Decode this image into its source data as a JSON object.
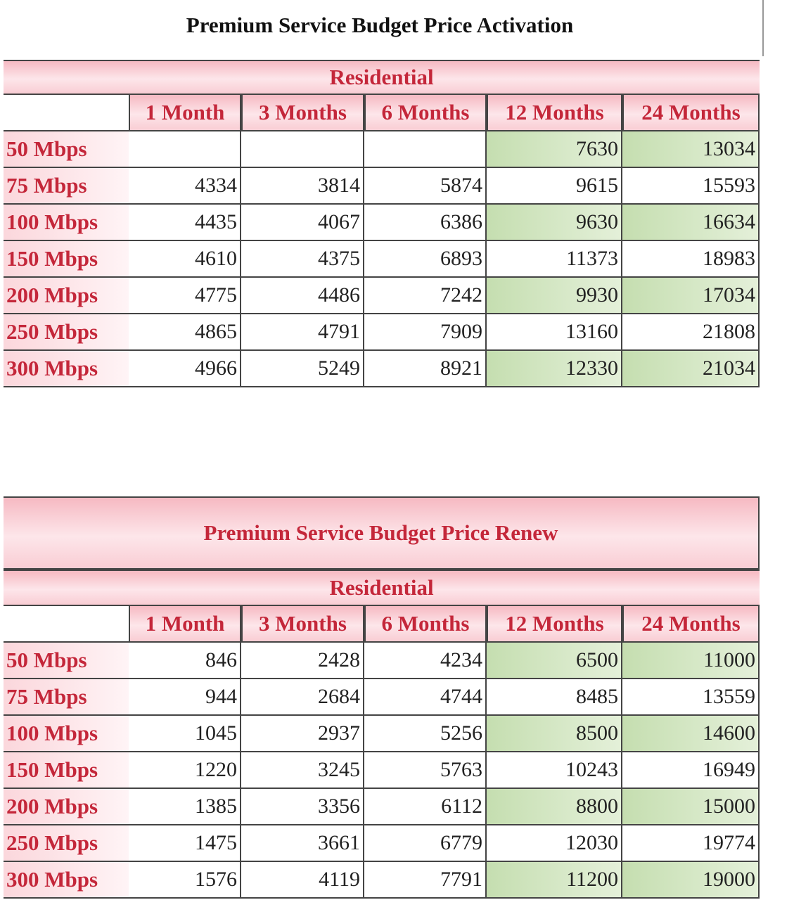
{
  "tables": [
    {
      "title": "Premium Service Budget Price Activation",
      "group": "Residential",
      "columns": [
        "1 Month",
        "3 Months",
        "6 Months",
        "12 Months",
        "24 Months"
      ],
      "rows": [
        {
          "label": "50 Mbps",
          "values": [
            null,
            null,
            null,
            7630,
            13034
          ]
        },
        {
          "label": "75 Mbps",
          "values": [
            4334,
            3814,
            5874,
            9615,
            15593
          ]
        },
        {
          "label": "100 Mbps",
          "values": [
            4435,
            4067,
            6386,
            9630,
            16634
          ]
        },
        {
          "label": "150 Mbps",
          "values": [
            4610,
            4375,
            6893,
            11373,
            18983
          ]
        },
        {
          "label": "200 Mbps",
          "values": [
            4775,
            4486,
            7242,
            9930,
            17034
          ]
        },
        {
          "label": "250 Mbps",
          "values": [
            4865,
            4791,
            7909,
            13160,
            21808
          ]
        },
        {
          "label": "300 Mbps",
          "values": [
            4966,
            5249,
            8921,
            12330,
            21034
          ]
        }
      ]
    },
    {
      "title": "Premium Service Budget Price Renew",
      "group": "Residential",
      "columns": [
        "1 Month",
        "3 Months",
        "6 Months",
        "12 Months",
        "24 Months"
      ],
      "rows": [
        {
          "label": "50 Mbps",
          "values": [
            846,
            2428,
            4234,
            6500,
            11000
          ]
        },
        {
          "label": "75 Mbps",
          "values": [
            944,
            2684,
            4744,
            8485,
            13559
          ]
        },
        {
          "label": "100 Mbps",
          "values": [
            1045,
            2937,
            5256,
            8500,
            14600
          ]
        },
        {
          "label": "150 Mbps",
          "values": [
            1220,
            3245,
            5763,
            10243,
            16949
          ]
        },
        {
          "label": "200 Mbps",
          "values": [
            1385,
            3356,
            6112,
            8800,
            15000
          ]
        },
        {
          "label": "250 Mbps",
          "values": [
            1475,
            3661,
            6779,
            12030,
            19774
          ]
        },
        {
          "label": "300 Mbps",
          "values": [
            1576,
            4119,
            7791,
            11200,
            19000
          ]
        }
      ]
    }
  ]
}
